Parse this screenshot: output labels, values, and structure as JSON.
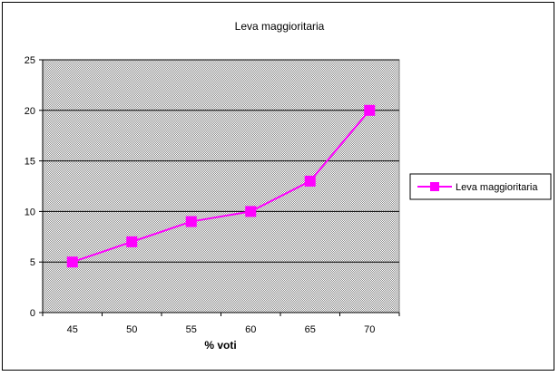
{
  "chart_data": {
    "type": "line",
    "title": "Leva maggioritaria",
    "xlabel": "% voti",
    "ylabel": "",
    "categories": [
      "45",
      "50",
      "55",
      "60",
      "65",
      "70"
    ],
    "series": [
      {
        "name": "Leva maggioritaria",
        "values": [
          5,
          7,
          9,
          10,
          13,
          20
        ],
        "color": "#ff00ff"
      }
    ],
    "ylim": [
      0,
      25
    ],
    "yticks": [
      "0",
      "5",
      "10",
      "15",
      "20",
      "25"
    ],
    "grid": true,
    "legend": "right",
    "plot_background": "#c0c0c0"
  }
}
